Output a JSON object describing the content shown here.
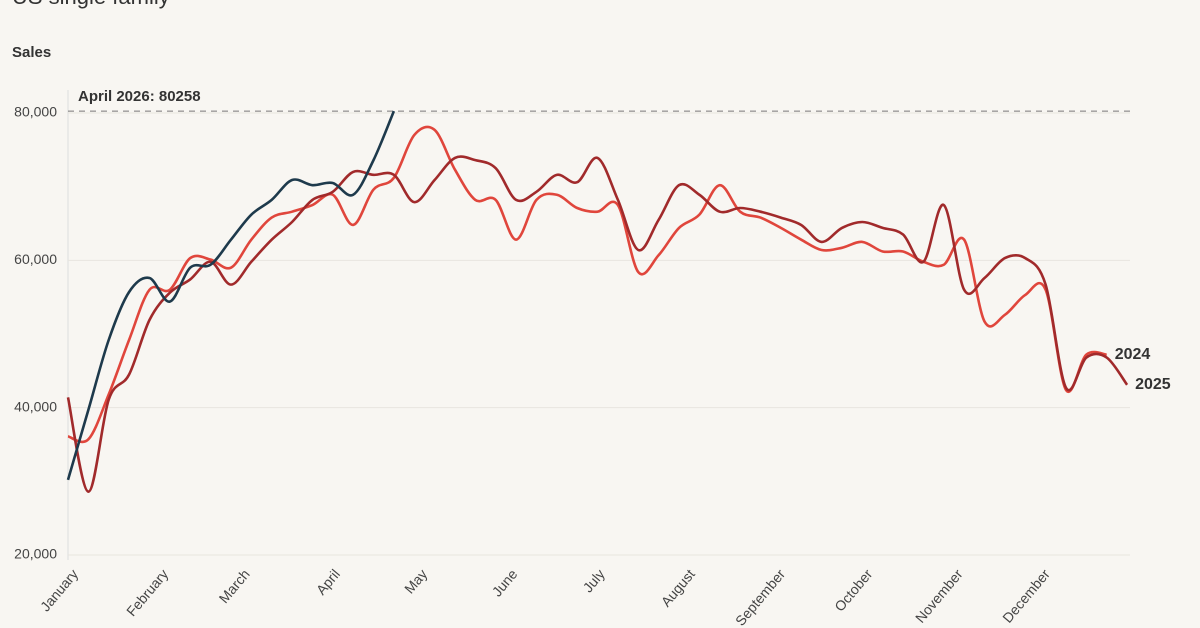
{
  "chart_data": {
    "type": "line",
    "title": "US single family",
    "y_label": "Sales",
    "x": [
      1,
      8,
      15,
      22,
      29,
      36,
      43,
      50,
      57,
      64,
      71,
      78,
      85,
      92,
      99,
      106,
      113,
      120,
      127,
      134,
      141,
      148,
      155,
      162,
      169,
      176,
      183,
      190,
      197,
      204,
      211,
      218,
      225,
      232,
      239,
      246,
      253,
      260,
      267,
      274,
      281,
      288,
      295,
      302,
      309,
      316,
      323,
      330,
      337,
      344,
      351,
      358,
      365
    ],
    "xlim": [
      1,
      366
    ],
    "xticks": [
      {
        "value": 1,
        "label": "January"
      },
      {
        "value": 32,
        "label": "February"
      },
      {
        "value": 60,
        "label": "March"
      },
      {
        "value": 91,
        "label": "April"
      },
      {
        "value": 121,
        "label": "May"
      },
      {
        "value": 152,
        "label": "June"
      },
      {
        "value": 182,
        "label": "July"
      },
      {
        "value": 213,
        "label": "August"
      },
      {
        "value": 244,
        "label": "September"
      },
      {
        "value": 274,
        "label": "October"
      },
      {
        "value": 305,
        "label": "November"
      },
      {
        "value": 335,
        "label": "December"
      }
    ],
    "ylim": [
      20000,
      84000
    ],
    "yticks": [
      {
        "value": 20000,
        "label": "20,000"
      },
      {
        "value": 40000,
        "label": "40,000"
      },
      {
        "value": 60000,
        "label": "60,000"
      },
      {
        "value": 80000,
        "label": "80,000"
      }
    ],
    "grid": true,
    "reference_line": {
      "value": 80258,
      "label": "April 2026: 80258"
    },
    "series": [
      {
        "name": "2024",
        "color": "#e0463c",
        "values": [
          36100,
          35700,
          41800,
          49200,
          56000,
          56000,
          60300,
          60100,
          59000,
          62800,
          65800,
          66600,
          67500,
          68900,
          64800,
          69600,
          71200,
          77000,
          77700,
          72300,
          68200,
          68200,
          62800,
          68200,
          68900,
          67100,
          66600,
          67500,
          58400,
          60700,
          64400,
          66200,
          70200,
          66600,
          65800,
          64400,
          62800,
          61400,
          61700,
          62500,
          61200,
          61200,
          59800,
          59400,
          62800,
          51700,
          52600,
          55300,
          56000,
          42400,
          47200,
          47200,
          null
        ]
      },
      {
        "name": "2025",
        "color": "#a12a2b",
        "values": [
          41400,
          28600,
          41100,
          44500,
          51900,
          55600,
          57400,
          59800,
          56700,
          59800,
          62800,
          65200,
          68200,
          69300,
          72000,
          71600,
          71600,
          67900,
          70900,
          73900,
          73600,
          72500,
          68200,
          69300,
          71600,
          70600,
          73900,
          68200,
          61400,
          65500,
          70200,
          68900,
          66600,
          67100,
          66600,
          65800,
          64800,
          62500,
          64400,
          65200,
          64400,
          63500,
          59800,
          67500,
          56000,
          57600,
          60300,
          60300,
          56700,
          42700,
          46800,
          46800,
          43100
        ]
      },
      {
        "color": "#1e3a4c",
        "values": [
          30200,
          39700,
          49200,
          55700,
          57600,
          54400,
          59000,
          59400,
          62800,
          66200,
          68200,
          70900,
          70200,
          70500,
          68900,
          73600,
          80258,
          null,
          null,
          null,
          null,
          null,
          null,
          null,
          null,
          null,
          null,
          null,
          null,
          null,
          null,
          null,
          null,
          null,
          null,
          null,
          null,
          null,
          null,
          null,
          null,
          null,
          null,
          null,
          null,
          null,
          null,
          null,
          null,
          null,
          null,
          null,
          null
        ]
      }
    ]
  }
}
